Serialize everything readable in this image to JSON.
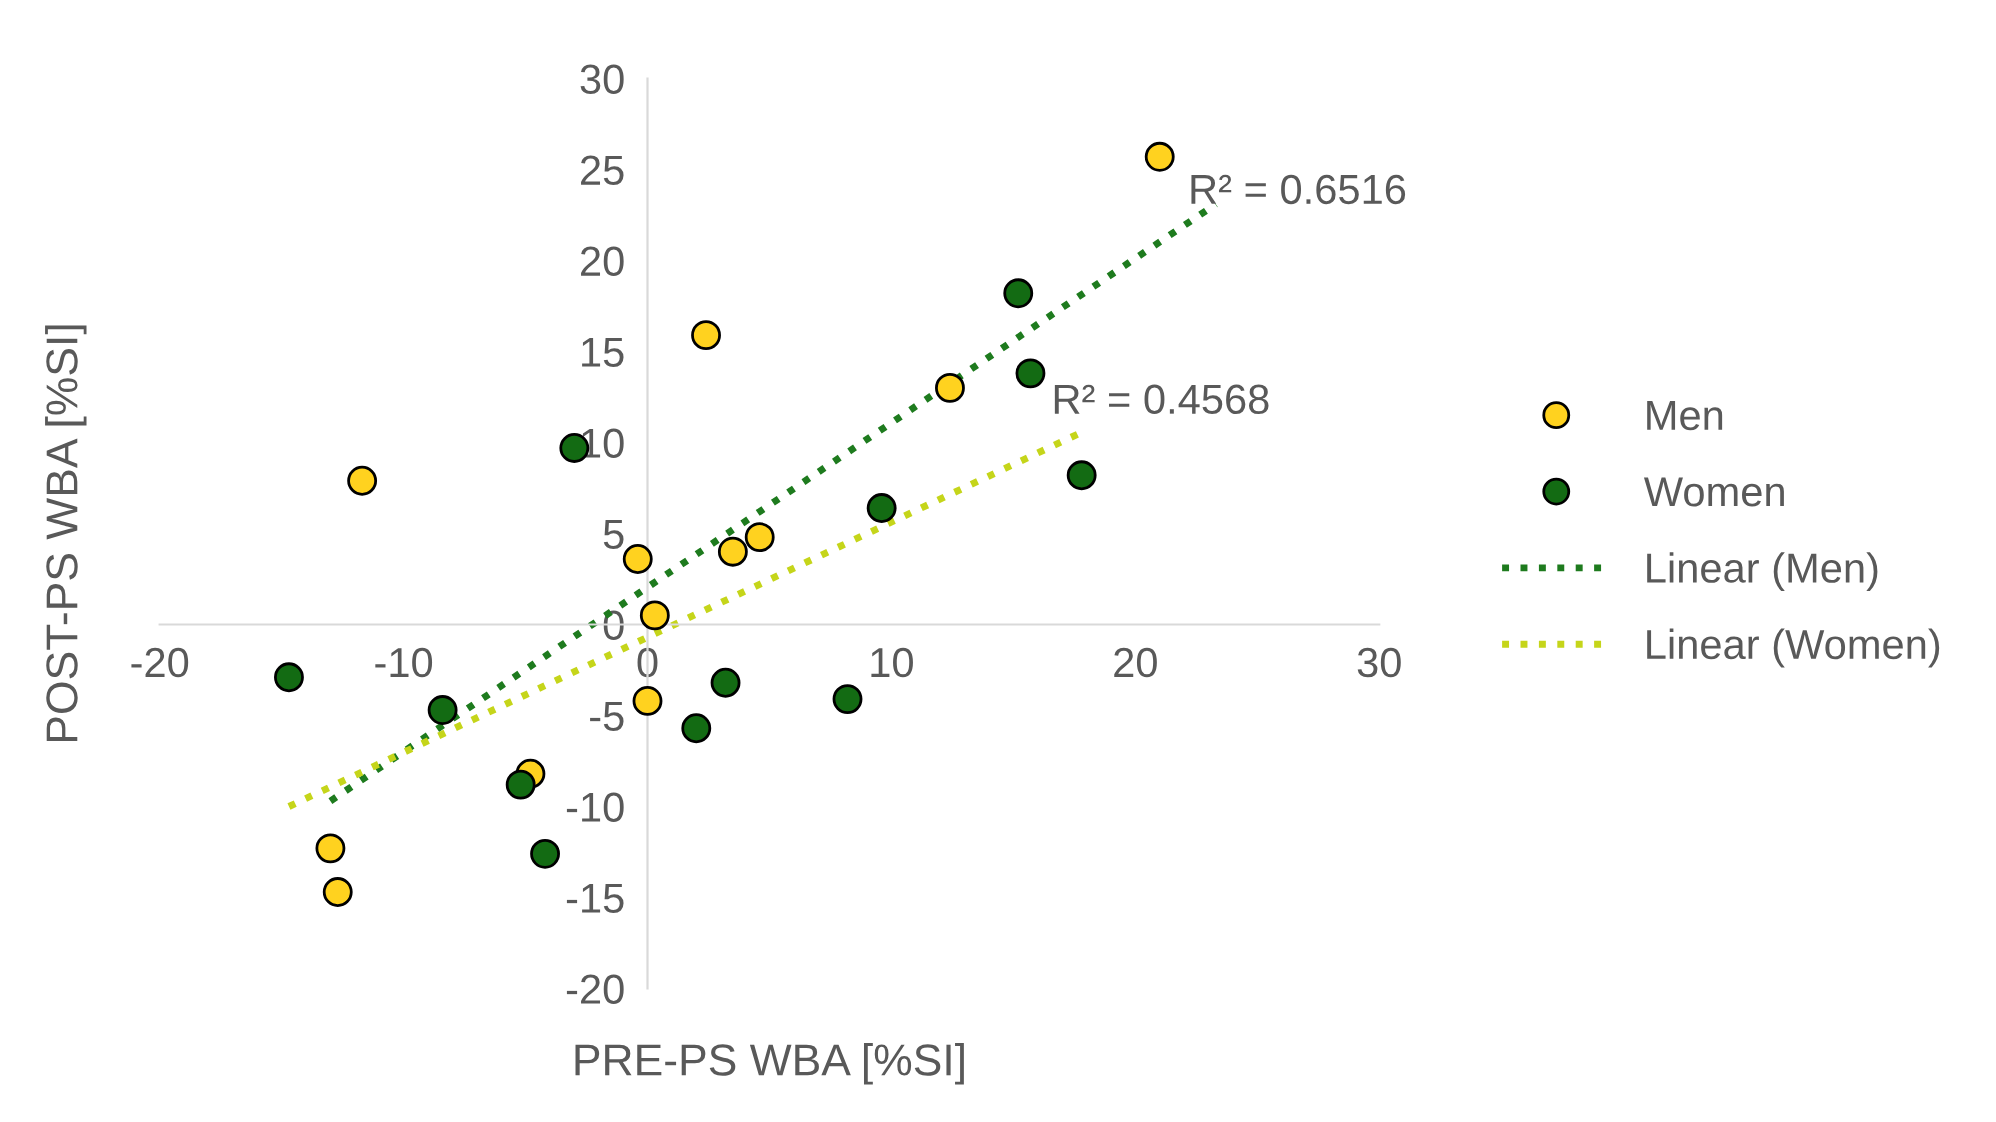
{
  "chart_data": {
    "type": "scatter",
    "xlabel": "PRE-PS WBA [%SI]",
    "ylabel": "POST-PS WBA [%SI]",
    "xlim": [
      -20,
      30
    ],
    "ylim": [
      -20,
      30
    ],
    "xticks": [
      -20,
      -10,
      0,
      10,
      20,
      30
    ],
    "yticks": [
      -20,
      -15,
      -10,
      -5,
      0,
      5,
      10,
      15,
      20,
      25,
      30
    ],
    "grid": false,
    "legend": "right",
    "marker": "circle",
    "series": [
      {
        "name": "Men",
        "color": "#ffd21f",
        "x": [
          21.0,
          2.4,
          12.4,
          -11.7,
          -0.4,
          4.6,
          3.5,
          0.3,
          0.0,
          -4.8,
          -13.0,
          -12.7
        ],
        "values": [
          25.7,
          15.9,
          13.0,
          7.9,
          3.6,
          4.8,
          4.0,
          0.5,
          -4.2,
          -8.2,
          -12.3,
          -14.7
        ]
      },
      {
        "name": "Women",
        "color": "#136b13",
        "x": [
          15.2,
          15.7,
          -3.0,
          9.6,
          17.8,
          -14.7,
          -8.4,
          3.2,
          8.2,
          2.0,
          -5.2,
          -4.2
        ],
        "values": [
          18.2,
          13.8,
          9.7,
          6.4,
          8.2,
          -2.9,
          -4.7,
          -3.2,
          -4.1,
          -5.7,
          -8.8,
          -12.6
        ]
      },
      {
        "name": "Linear (Men)",
        "type": "line",
        "color": "#1e7b1e",
        "marker": "none",
        "line_style": "dotted",
        "x": [
          -13.0,
          23.3
        ],
        "values": [
          -9.7,
          23.1
        ]
      },
      {
        "name": "Linear (Women)",
        "type": "line",
        "color": "#c5d51a",
        "marker": "none",
        "line_style": "dotted",
        "x": [
          -14.7,
          17.7
        ],
        "values": [
          -10.0,
          10.5
        ]
      }
    ],
    "annotations": [
      "R² = 0.6516",
      "R² = 0.4568"
    ]
  }
}
